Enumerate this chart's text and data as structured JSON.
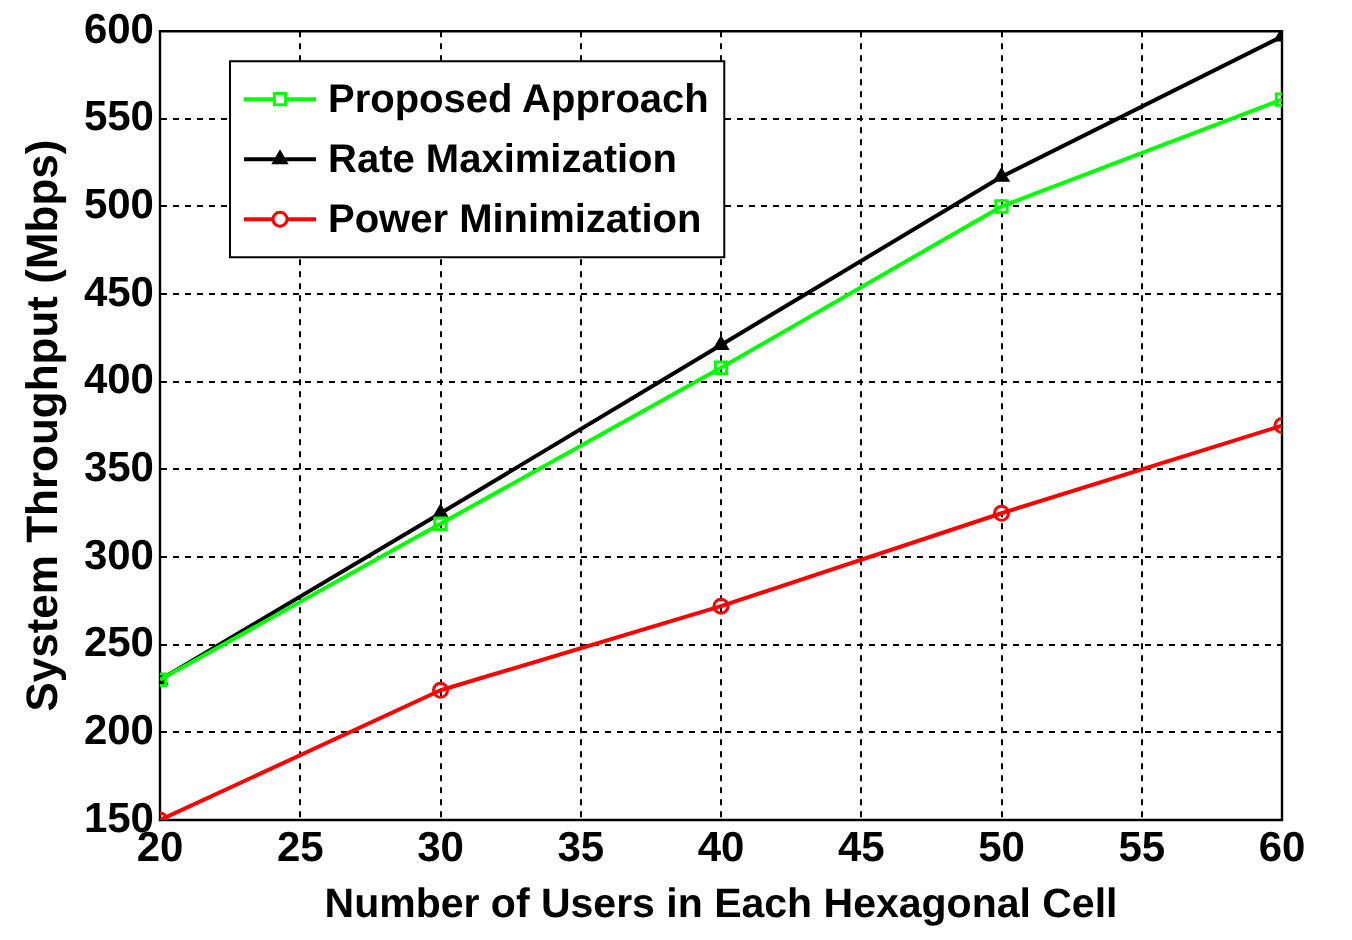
{
  "chart_data": {
    "type": "line",
    "xlabel": "Number of Users in Each Hexagonal Cell",
    "ylabel": "System Throughput (Mbps)",
    "x": [
      20,
      30,
      40,
      50,
      60
    ],
    "series": [
      {
        "name": "Proposed Approach",
        "color": "#00ff00",
        "marker": "square",
        "values": [
          230,
          319,
          408,
          500,
          561
        ]
      },
      {
        "name": "Rate Maximization",
        "color": "#000000",
        "marker": "triangle",
        "values": [
          230,
          325,
          421,
          517,
          597
        ]
      },
      {
        "name": "Power Minimization",
        "color": "#ff0000",
        "marker": "circle",
        "values": [
          150,
          224,
          272,
          325,
          375
        ]
      }
    ],
    "xlim": [
      20,
      60
    ],
    "xticks": [
      20,
      25,
      30,
      35,
      40,
      45,
      50,
      55,
      60
    ],
    "ylim": [
      150,
      600
    ],
    "yticks": [
      150,
      200,
      250,
      300,
      350,
      400,
      450,
      500,
      550,
      600
    ],
    "grid": true,
    "legend": "top left",
    "line_style": "solid"
  }
}
